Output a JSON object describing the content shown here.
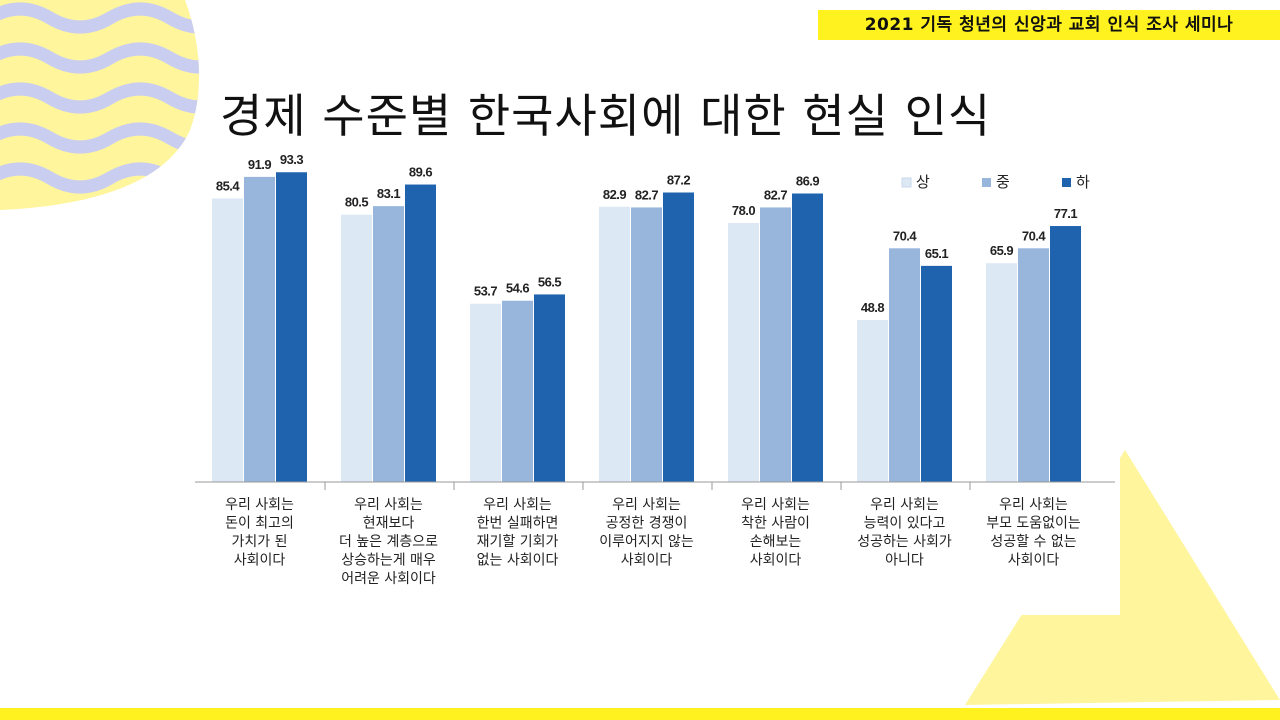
{
  "header": {
    "tag": "2021 기독 청년의 신앙과 교회 인식 조사 세미나"
  },
  "slide": {
    "title": "경제 수준별 한국사회에 대한 현실 인식"
  },
  "colors": {
    "accent_yellow": "#fff21f",
    "wave_blue": "#c9cdf0",
    "series_high": "#dde8f5",
    "series_mid": "#98b6dc",
    "series_low": "#1f63ae"
  },
  "chart_data": {
    "type": "bar",
    "title": "",
    "ylim": [
      0,
      100
    ],
    "legend_position": "top-right",
    "categories": [
      [
        "우리 사회는",
        "돈이 최고의",
        "가치가 된",
        "사회이다"
      ],
      [
        "우리 사회는",
        "현재보다",
        "더 높은 계층으로",
        "상승하는게 매우",
        "어려운 사회이다"
      ],
      [
        "우리 사회는",
        "한번 실패하면",
        "재기할 기회가",
        "없는 사회이다"
      ],
      [
        "우리 사회는",
        "공정한 경쟁이",
        "이루어지지 않는",
        "사회이다"
      ],
      [
        "우리 사회는",
        "착한 사람이",
        "손해보는",
        "사회이다"
      ],
      [
        "우리 사회는",
        "능력이 있다고",
        "성공하는 사회가",
        "아니다"
      ],
      [
        "우리 사회는",
        "부모 도움없이는",
        "성공할 수 없는",
        "사회이다"
      ]
    ],
    "series": [
      {
        "name": "상",
        "color": "#dde8f5",
        "values": [
          85.4,
          80.5,
          53.7,
          82.9,
          78.0,
          48.8,
          65.9
        ]
      },
      {
        "name": "중",
        "color": "#98b6dc",
        "values": [
          91.9,
          83.1,
          54.6,
          82.7,
          82.7,
          70.4,
          70.4
        ]
      },
      {
        "name": "하",
        "color": "#1f63ae",
        "values": [
          93.3,
          89.6,
          56.5,
          87.2,
          86.9,
          65.1,
          77.1
        ]
      }
    ]
  }
}
